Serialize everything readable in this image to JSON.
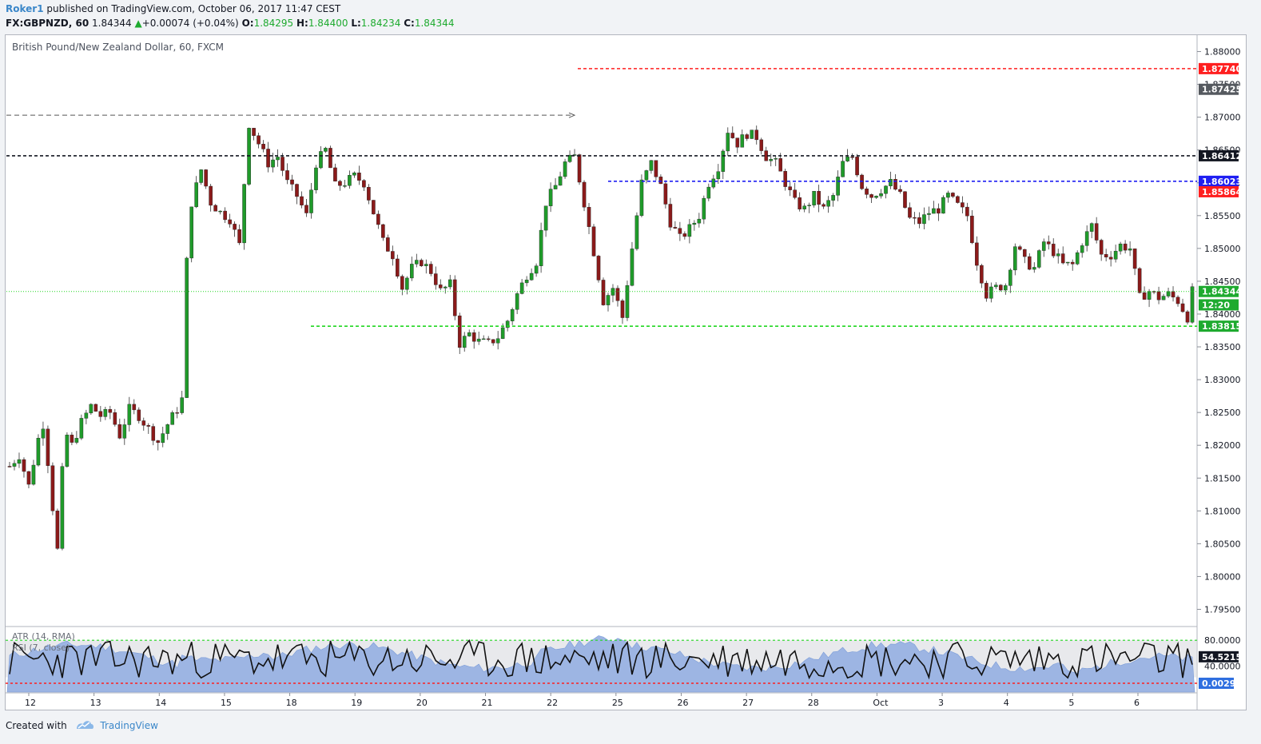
{
  "header": {
    "author": "Roker1",
    "published_text": "published on TradingView.com, October 06, 2017 11:47 CEST",
    "symbol": "FX:GBPNZD, 60",
    "last": "1.84344",
    "change": "+0.00074 (+0.04%)",
    "o_label": "O:",
    "o_value": "1.84295",
    "h_label": "H:",
    "h_value": "1.84400",
    "l_label": "L:",
    "l_value": "1.84234",
    "c_label": "C:",
    "c_value": "1.84344"
  },
  "legend": {
    "title": "British Pound/New Zealand Dollar, 60, FXCM",
    "atr": "ATR (14, RMA)",
    "rsi": "RSI (7, close)"
  },
  "footer": {
    "created_with": "Created with",
    "brand": "TradingView"
  },
  "colors": {
    "up": "#1f9b2a",
    "down": "#8b1a1a",
    "red_line": "#ff1f1f",
    "black_line": "#131722",
    "blue_line": "#1f1ff2",
    "green_line": "#22d622",
    "price_tag": "#1eaa2f",
    "atr_fill": "#9db5e3"
  },
  "chart_data": {
    "type": "candlestick",
    "symbol": "FX:GBPNZD",
    "ylim": [
      1.7925,
      1.8825
    ],
    "y_ticks": [
      "1.88000",
      "1.87500",
      "1.87000",
      "1.86500",
      "1.86000",
      "1.85500",
      "1.85000",
      "1.84500",
      "1.84000",
      "1.83500",
      "1.83000",
      "1.82500",
      "1.82000",
      "1.81500",
      "1.81000",
      "1.80500",
      "1.80000",
      "1.79500"
    ],
    "x_ticks": [
      "12",
      "13",
      "14",
      "15",
      "18",
      "19",
      "20",
      "21",
      "22",
      "25",
      "26",
      "27",
      "28",
      "Oct",
      "3",
      "4",
      "5",
      "6"
    ],
    "path_points": [
      [
        0,
        1.8168
      ],
      [
        2,
        1.8185
      ],
      [
        4,
        1.8138
      ],
      [
        6,
        1.821
      ],
      [
        7,
        1.8232
      ],
      [
        8,
        1.8175
      ],
      [
        9,
        1.8105
      ],
      [
        10,
        1.804
      ],
      [
        11,
        1.816
      ],
      [
        12,
        1.8215
      ],
      [
        13,
        1.82
      ],
      [
        15,
        1.8235
      ],
      [
        17,
        1.826
      ],
      [
        19,
        1.8245
      ],
      [
        21,
        1.825
      ],
      [
        23,
        1.8215
      ],
      [
        25,
        1.8255
      ],
      [
        27,
        1.8245
      ],
      [
        29,
        1.8225
      ],
      [
        31,
        1.8205
      ],
      [
        33,
        1.8232
      ],
      [
        35,
        1.8255
      ],
      [
        36,
        1.827
      ],
      [
        37,
        1.848
      ],
      [
        38,
        1.857
      ],
      [
        40,
        1.862
      ],
      [
        42,
        1.857
      ],
      [
        44,
        1.8555
      ],
      [
        46,
        1.8545
      ],
      [
        48,
        1.8505
      ],
      [
        49,
        1.86
      ],
      [
        50,
        1.869
      ],
      [
        52,
        1.866
      ],
      [
        54,
        1.863
      ],
      [
        56,
        1.864
      ],
      [
        58,
        1.86
      ],
      [
        60,
        1.858
      ],
      [
        62,
        1.855
      ],
      [
        64,
        1.863
      ],
      [
        66,
        1.865
      ],
      [
        68,
        1.8595
      ],
      [
        70,
        1.86
      ],
      [
        72,
        1.861
      ],
      [
        74,
        1.86
      ],
      [
        76,
        1.8555
      ],
      [
        78,
        1.851
      ],
      [
        80,
        1.849
      ],
      [
        82,
        1.844
      ],
      [
        84,
        1.847
      ],
      [
        86,
        1.848
      ],
      [
        88,
        1.8465
      ],
      [
        90,
        1.8435
      ],
      [
        92,
        1.8445
      ],
      [
        94,
        1.8355
      ],
      [
        96,
        1.837
      ],
      [
        98,
        1.8358
      ],
      [
        100,
        1.8355
      ],
      [
        102,
        1.8365
      ],
      [
        104,
        1.839
      ],
      [
        106,
        1.843
      ],
      [
        108,
        1.846
      ],
      [
        110,
        1.848
      ],
      [
        112,
        1.857
      ],
      [
        114,
        1.8595
      ],
      [
        116,
        1.863
      ],
      [
        118,
        1.864
      ],
      [
        120,
        1.857
      ],
      [
        122,
        1.8495
      ],
      [
        124,
        1.842
      ],
      [
        126,
        1.844
      ],
      [
        128,
        1.8395
      ],
      [
        130,
        1.85
      ],
      [
        132,
        1.86
      ],
      [
        134,
        1.863
      ],
      [
        136,
        1.8595
      ],
      [
        138,
        1.854
      ],
      [
        140,
        1.8515
      ],
      [
        142,
        1.853
      ],
      [
        144,
        1.855
      ],
      [
        146,
        1.86
      ],
      [
        148,
        1.8625
      ],
      [
        150,
        1.868
      ],
      [
        152,
        1.866
      ],
      [
        154,
        1.8675
      ],
      [
        156,
        1.867
      ],
      [
        158,
        1.864
      ],
      [
        160,
        1.863
      ],
      [
        162,
        1.86
      ],
      [
        164,
        1.857
      ],
      [
        166,
        1.856
      ],
      [
        168,
        1.858
      ],
      [
        170,
        1.856
      ],
      [
        172,
        1.858
      ],
      [
        174,
        1.863
      ],
      [
        176,
        1.864
      ],
      [
        178,
        1.8595
      ],
      [
        180,
        1.858
      ],
      [
        182,
        1.859
      ],
      [
        184,
        1.86
      ],
      [
        186,
        1.858
      ],
      [
        188,
        1.8545
      ],
      [
        190,
        1.854
      ],
      [
        192,
        1.8555
      ],
      [
        194,
        1.856
      ],
      [
        196,
        1.858
      ],
      [
        198,
        1.8565
      ],
      [
        200,
        1.855
      ],
      [
        202,
        1.848
      ],
      [
        204,
        1.843
      ],
      [
        206,
        1.844
      ],
      [
        208,
        1.8445
      ],
      [
        210,
        1.8505
      ],
      [
        212,
        1.848
      ],
      [
        214,
        1.847
      ],
      [
        216,
        1.851
      ],
      [
        218,
        1.8495
      ],
      [
        220,
        1.8475
      ],
      [
        222,
        1.8475
      ],
      [
        224,
        1.851
      ],
      [
        226,
        1.8535
      ],
      [
        228,
        1.849
      ],
      [
        230,
        1.849
      ],
      [
        232,
        1.8505
      ],
      [
        234,
        1.85
      ],
      [
        236,
        1.8425
      ],
      [
        238,
        1.8435
      ],
      [
        240,
        1.8425
      ],
      [
        242,
        1.843
      ],
      [
        244,
        1.842
      ],
      [
        246,
        1.8395
      ],
      [
        247,
        1.84344
      ]
    ],
    "horizontal_lines": [
      {
        "price": 1.8774,
        "label": "1.87740",
        "style": "red"
      },
      {
        "price": 1.86412,
        "label": "1.86412",
        "style": "black"
      },
      {
        "price": 1.86023,
        "label": "1.86023",
        "style": "blue"
      },
      {
        "price": 1.84344,
        "label": "1.84344",
        "style": "green-dotted"
      },
      {
        "price": 1.83815,
        "label": "1.83815",
        "style": "green"
      }
    ],
    "price_labels": [
      {
        "label": "1.87425",
        "price": 1.87425,
        "color": "#55595f"
      },
      {
        "label": "1.85864",
        "price": 1.85864,
        "color": "#ff1f1f"
      },
      {
        "label": "12:20",
        "price": 1.8414,
        "color": "#1eaa2f"
      }
    ],
    "arrow_price": 1.8703,
    "indicators": {
      "rsi": {
        "name": "RSI (7, close)",
        "last_value": 54.5215,
        "levels": [
          80,
          40
        ],
        "ylim": [
          0,
          100
        ]
      },
      "atr": {
        "name": "ATR (14, RMA)",
        "last_value": 0.0029
      },
      "pane_ticks": [
        "80.0000",
        "40.0000"
      ],
      "rsi_label": "54.5215",
      "atr_label": "0.0029"
    }
  }
}
